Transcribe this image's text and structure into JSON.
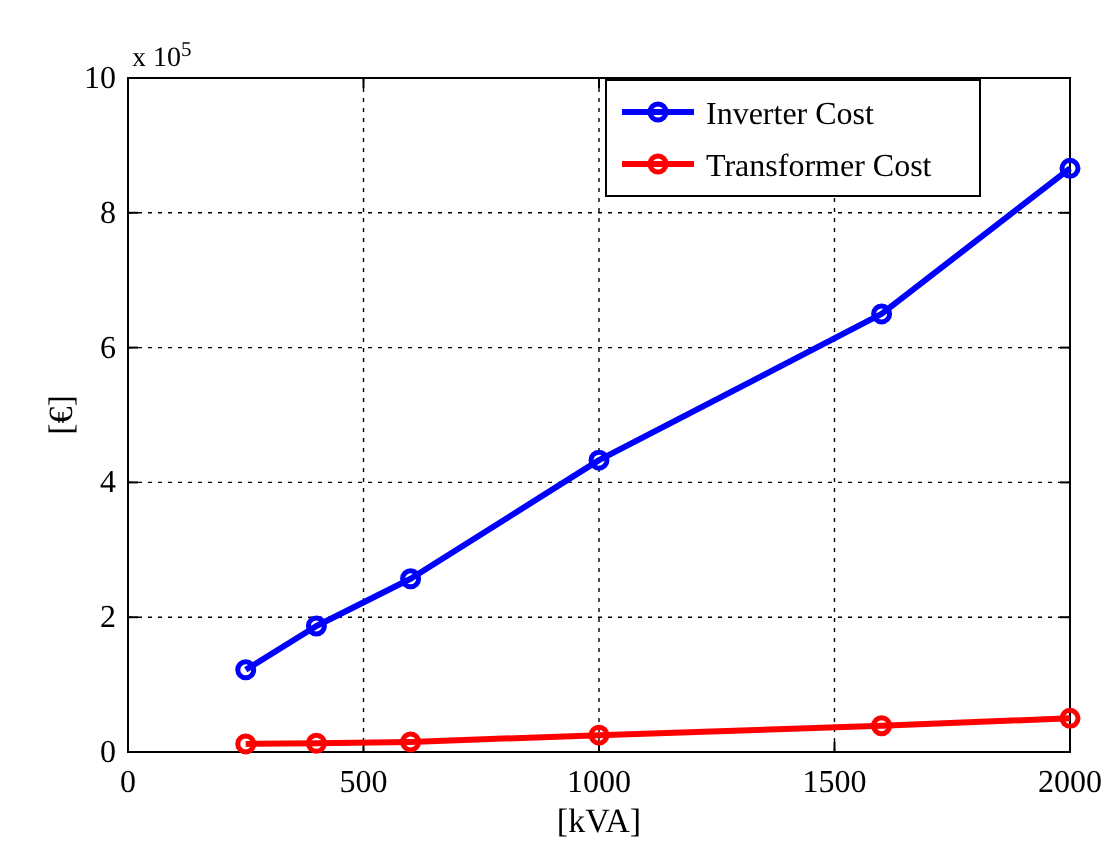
{
  "chart_data": {
    "type": "line",
    "xlabel": "[kVA]",
    "ylabel": "[€]",
    "annotations": [
      "x 10$^{5}$"
    ],
    "x": [
      250,
      400,
      600,
      1000,
      1600,
      2000
    ],
    "series": [
      {
        "name": "Inverter Cost",
        "color": "#0000ff",
        "values": [
          1.22,
          1.87,
          2.57,
          4.33,
          6.5,
          8.66
        ]
      },
      {
        "name": "Transformer Cost",
        "color": "#ff0000",
        "values": [
          0.12,
          0.13,
          0.15,
          0.25,
          0.39,
          0.5
        ]
      }
    ],
    "xlim": [
      0,
      2000
    ],
    "xticks": [
      0,
      500,
      1000,
      1500,
      2000
    ],
    "ylim": [
      0,
      10
    ],
    "yticks": [
      0,
      2,
      4,
      6,
      8,
      10
    ],
    "grid": true,
    "legend": "top right",
    "marker": "circle",
    "line_style": "solid"
  }
}
